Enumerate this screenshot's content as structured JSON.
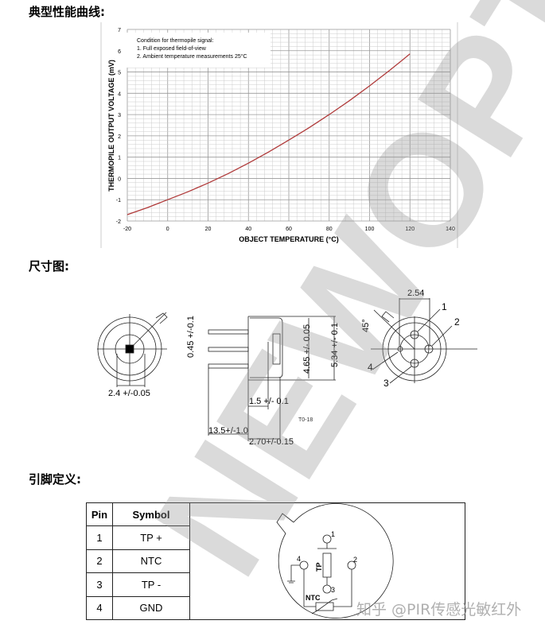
{
  "headings": {
    "performance": "典型性能曲线:",
    "dimensions": "尺寸图:",
    "pinout": "引脚定义:"
  },
  "chart_data": {
    "type": "line",
    "xlabel": "OBJECT TEMPERATURE (°C)",
    "ylabel": "THERMOPILE OUTPUT VOLTAGE (mV)",
    "xlim": [
      -20,
      140
    ],
    "ylim": [
      -2,
      7
    ],
    "xticks": [
      -20,
      0,
      20,
      40,
      60,
      80,
      100,
      120,
      140
    ],
    "yticks": [
      -2,
      -1,
      0,
      1,
      2,
      3,
      4,
      5,
      6,
      7
    ],
    "grid": true,
    "annotation": [
      "Condition for thermopile signal:",
      "1.  Full exposed field-of-view",
      "2.  Ambient temperature measurements 25°C"
    ],
    "series": [
      {
        "color": "#b03a3a",
        "x": [
          -20,
          -10,
          0,
          10,
          20,
          30,
          40,
          50,
          60,
          70,
          80,
          90,
          100,
          110,
          120
        ],
        "y": [
          -1.7,
          -1.37,
          -1.0,
          -0.63,
          -0.22,
          0.23,
          0.72,
          1.24,
          1.8,
          2.38,
          3.0,
          3.65,
          4.35,
          5.08,
          5.85
        ]
      }
    ]
  },
  "dimensions": {
    "d1": "2.4  +/-0.05",
    "d2": "0.45 +/-0.1",
    "d3": "4.65 +/- 0.05",
    "d4": "5.34 +/- 0.1",
    "d5": "1.5  +/-  0.1",
    "d6": "13.5+/-1.0",
    "d7": "2.70+/-0.15",
    "pkg": "T0-18",
    "d8": "2.54",
    "angle": "45°",
    "pins": [
      "1",
      "2",
      "3",
      "4"
    ]
  },
  "pin_table": {
    "headers": [
      "Pin",
      "Symbol"
    ],
    "rows": [
      [
        "1",
        "TP +"
      ],
      [
        "2",
        "NTC"
      ],
      [
        "3",
        "TP -"
      ],
      [
        "4",
        "GND"
      ]
    ],
    "schematic": {
      "pins": [
        "1",
        "2",
        "3",
        "4"
      ],
      "tp": "TP",
      "ntc": "NTC"
    }
  },
  "watermark": "NEWOPTO",
  "footer_watermark": "知乎 @PIR传感光敏红外"
}
